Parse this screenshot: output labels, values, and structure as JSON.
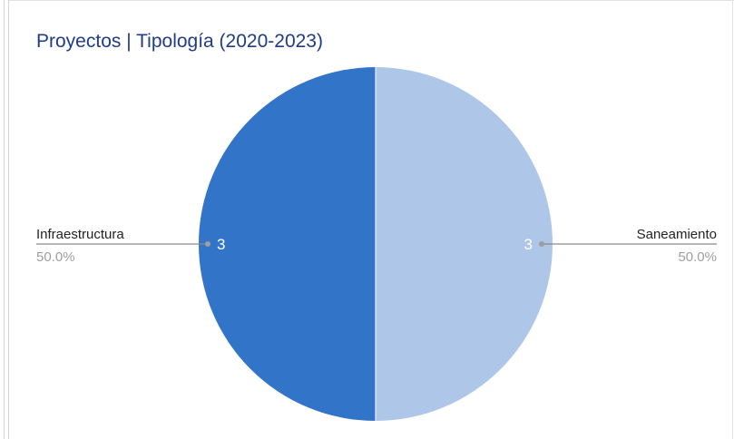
{
  "chart_data": {
    "type": "pie",
    "title": "Proyectos | Tipología (2020-2023)",
    "slices": [
      {
        "label": "Saneamiento",
        "value": 3,
        "percent_label": "50.0%",
        "color": "#aec6e8"
      },
      {
        "label": "Infraestructura",
        "value": 3,
        "percent_label": "50.0%",
        "color": "#3274c7"
      }
    ]
  }
}
